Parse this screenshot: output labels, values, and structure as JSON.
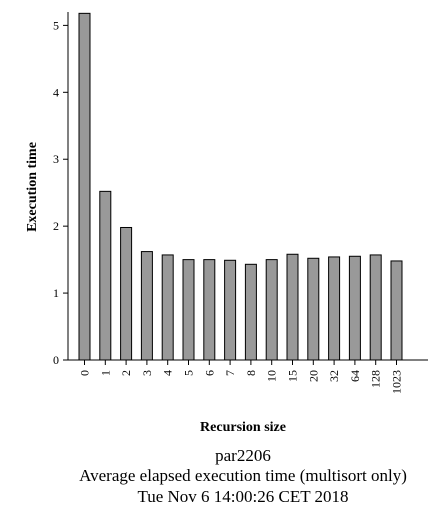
{
  "chart_data": {
    "type": "bar",
    "xlabel": "Recursion size",
    "ylabel": "Execution time",
    "categories": [
      "0",
      "1",
      "2",
      "3",
      "4",
      "5",
      "6",
      "7",
      "8",
      "10",
      "15",
      "20",
      "32",
      "64",
      "128",
      "1023"
    ],
    "values": [
      5.18,
      2.52,
      1.98,
      1.62,
      1.57,
      1.5,
      1.5,
      1.49,
      1.43,
      1.5,
      1.58,
      1.52,
      1.54,
      1.55,
      1.57,
      1.48
    ],
    "ylim": [
      0,
      5.2
    ],
    "yticks": [
      0,
      1,
      2,
      3,
      4,
      5
    ],
    "bar_color": "#999999",
    "bar_stroke": "#000000",
    "grid": false
  },
  "caption": {
    "line1": "par2206",
    "line2": "Average elapsed execution time (multisort only)",
    "line3": "Tue Nov 6 14:00:26 CET 2018"
  }
}
